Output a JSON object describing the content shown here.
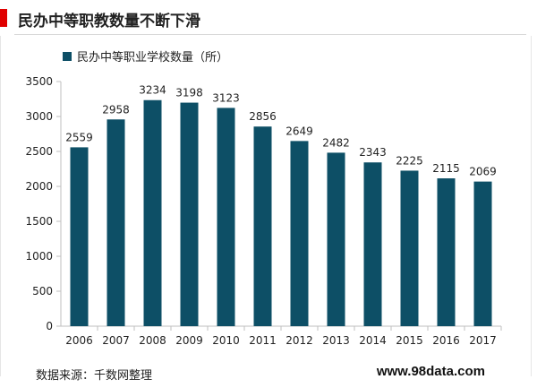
{
  "header": {
    "title": "民办中等职教数量不断下滑"
  },
  "colors": {
    "accent": "#e00000",
    "bar": "#0d4f66"
  },
  "footer": {
    "source": "数据来源：千数网整理",
    "site": "www.98data.com"
  },
  "chart_data": {
    "type": "bar",
    "categories": [
      "2006",
      "2007",
      "2008",
      "2009",
      "2010",
      "2011",
      "2012",
      "2013",
      "2014",
      "2015",
      "2016",
      "2017"
    ],
    "series": [
      {
        "name": "民办中等职业学校数量（所）",
        "values": [
          2559,
          2958,
          3234,
          3198,
          3123,
          2856,
          2649,
          2482,
          2343,
          2225,
          2115,
          2069
        ]
      }
    ],
    "ylim": [
      0,
      3500
    ],
    "yticks": [
      0,
      500,
      1000,
      1500,
      2000,
      2500,
      3000,
      3500
    ],
    "grid": false,
    "legend": "top-left",
    "data_labels": true
  }
}
